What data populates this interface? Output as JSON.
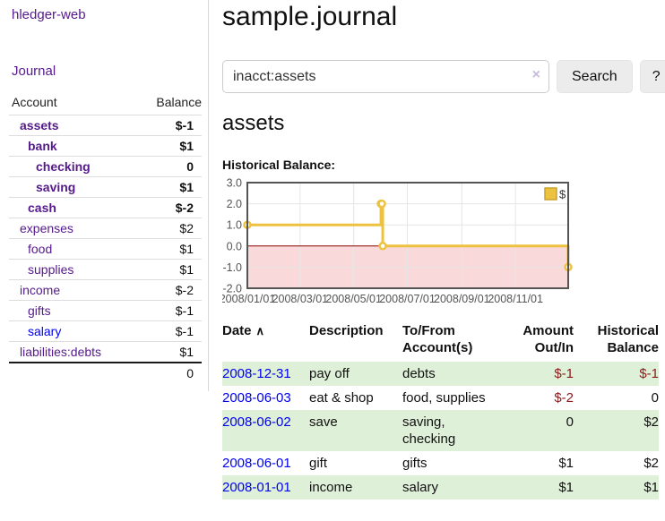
{
  "app": {
    "brand": "hledger-web"
  },
  "sidebar": {
    "journal_link": "Journal",
    "account_header": "Account",
    "balance_header": "Balance",
    "accounts": [
      {
        "name": "assets",
        "indent": 1,
        "bold": true,
        "balance": "$-1",
        "balance_style": "neg"
      },
      {
        "name": "bank",
        "indent": 2,
        "bold": true,
        "balance": "$1",
        "balance_style": ""
      },
      {
        "name": "checking",
        "indent": 3,
        "bold": true,
        "balance": "0",
        "balance_style": ""
      },
      {
        "name": "saving",
        "indent": 3,
        "bold": true,
        "balance": "$1",
        "balance_style": ""
      },
      {
        "name": "cash",
        "indent": 2,
        "bold": true,
        "balance": "$-2",
        "balance_style": "neg"
      },
      {
        "name": "expenses",
        "indent": 1,
        "bold": false,
        "balance": "$2",
        "balance_style": ""
      },
      {
        "name": "food",
        "indent": 2,
        "bold": false,
        "balance": "$1",
        "balance_style": ""
      },
      {
        "name": "supplies",
        "indent": 2,
        "bold": false,
        "balance": "$1",
        "balance_style": ""
      },
      {
        "name": "income",
        "indent": 1,
        "bold": false,
        "balance": "$-2",
        "balance_style": "neg-muted"
      },
      {
        "name": "gifts",
        "indent": 2,
        "bold": false,
        "balance": "$-1",
        "balance_style": "neg-muted"
      },
      {
        "name": "salary",
        "indent": 2,
        "bold": false,
        "balance": "$-1",
        "balance_style": "neg-muted",
        "link_style": "unvisited"
      },
      {
        "name": "liabilities:debts",
        "indent": 1,
        "bold": false,
        "balance": "$1",
        "balance_style": ""
      }
    ],
    "total": "0"
  },
  "main": {
    "title": "sample.journal",
    "search": {
      "query": "inacct:assets",
      "clear_icon": "×",
      "button": "Search",
      "help_button": "?"
    },
    "account_heading": "assets",
    "chart_label": "Historical Balance:"
  },
  "chart_data": {
    "type": "line",
    "style": "step",
    "title": "Historical Balance:",
    "legend": [
      {
        "label": "$",
        "color": "#edc240"
      }
    ],
    "legend_position": "top-right",
    "grid": true,
    "xlim": [
      "2008-01-01",
      "2008-12-31"
    ],
    "ylim": [
      -2,
      3
    ],
    "x_ticks": [
      {
        "value": "2008-01-01",
        "label": "2008/01/01"
      },
      {
        "value": "2008-03-01",
        "label": "2008/03/01"
      },
      {
        "value": "2008-05-01",
        "label": "2008/05/01"
      },
      {
        "value": "2008-07-01",
        "label": "2008/07/01"
      },
      {
        "value": "2008-09-01",
        "label": "2008/09/01"
      },
      {
        "value": "2008-11-01",
        "label": "2008/11/01"
      }
    ],
    "y_ticks": [
      {
        "value": 3,
        "label": "3.0"
      },
      {
        "value": 2,
        "label": "2.0"
      },
      {
        "value": 1,
        "label": "1.0"
      },
      {
        "value": 0,
        "label": "0.0"
      },
      {
        "value": -1,
        "label": "-1.0"
      },
      {
        "value": -2,
        "label": "-2.0"
      }
    ],
    "series": [
      {
        "name": "$",
        "points": [
          [
            "2008-01-01",
            1
          ],
          [
            "2008-06-01",
            2
          ],
          [
            "2008-06-02",
            2
          ],
          [
            "2008-06-03",
            0
          ],
          [
            "2008-12-31",
            -1
          ]
        ]
      }
    ],
    "line_color": "#edc240",
    "marker_fill": "#ffffff",
    "negative_region_color": "#f9d9d9",
    "zero_line_color": "#8b0000",
    "grid_color": "#e6e6e6",
    "axis_color": "#545454"
  },
  "register": {
    "headers": {
      "date": "Date",
      "sort_arrow": "∧",
      "description": "Description",
      "accounts": "To/From Account(s)",
      "amount": "Amount Out/In",
      "balance": "Historical Balance"
    },
    "rows": [
      {
        "date": "2008-12-31",
        "description": "pay off",
        "accounts": "debts",
        "amount": "$-1",
        "amount_neg": true,
        "balance": "$-1",
        "balance_neg": true
      },
      {
        "date": "2008-06-03",
        "description": "eat & shop",
        "accounts": "food, supplies",
        "amount": "$-2",
        "amount_neg": true,
        "balance": "0",
        "balance_neg": false
      },
      {
        "date": "2008-06-02",
        "description": "save",
        "accounts": "saving, checking",
        "amount": "0",
        "amount_neg": false,
        "balance": "$2",
        "balance_neg": false
      },
      {
        "date": "2008-06-01",
        "description": "gift",
        "accounts": "gifts",
        "amount": "$1",
        "amount_neg": false,
        "balance": "$2",
        "balance_neg": false
      },
      {
        "date": "2008-01-01",
        "description": "income",
        "accounts": "salary",
        "amount": "$1",
        "amount_neg": false,
        "balance": "$1",
        "balance_neg": false
      }
    ]
  }
}
